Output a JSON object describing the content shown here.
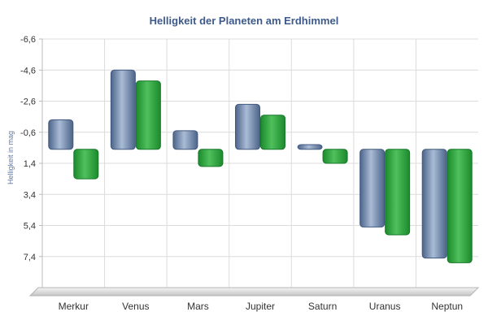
{
  "chart_data": {
    "type": "bar",
    "title": "Helligkeit der Planeten am Erdhimmel",
    "xlabel": "",
    "ylabel": "Helligkeit in mag",
    "categories": [
      "Merkur",
      "Venus",
      "Mars",
      "Jupiter",
      "Saturn",
      "Uranus",
      "Neptun"
    ],
    "y_ticks": [
      "-6,6",
      "-4,6",
      "-2,6",
      "-0,6",
      "1,4",
      "3,4",
      "5,4",
      "7,4"
    ],
    "ylim": [
      -6.6,
      9.4
    ],
    "y_inverted": true,
    "baseline": 0.5,
    "grid": true,
    "legend": "none",
    "series": [
      {
        "color": "#6d83a8",
        "values": [
          -1.4,
          -4.6,
          -0.7,
          -2.4,
          0.2,
          5.5,
          7.5
        ]
      },
      {
        "color": "#2f9a3e",
        "values": [
          2.4,
          -3.9,
          1.6,
          -1.7,
          1.4,
          6.0,
          7.8
        ]
      }
    ]
  }
}
